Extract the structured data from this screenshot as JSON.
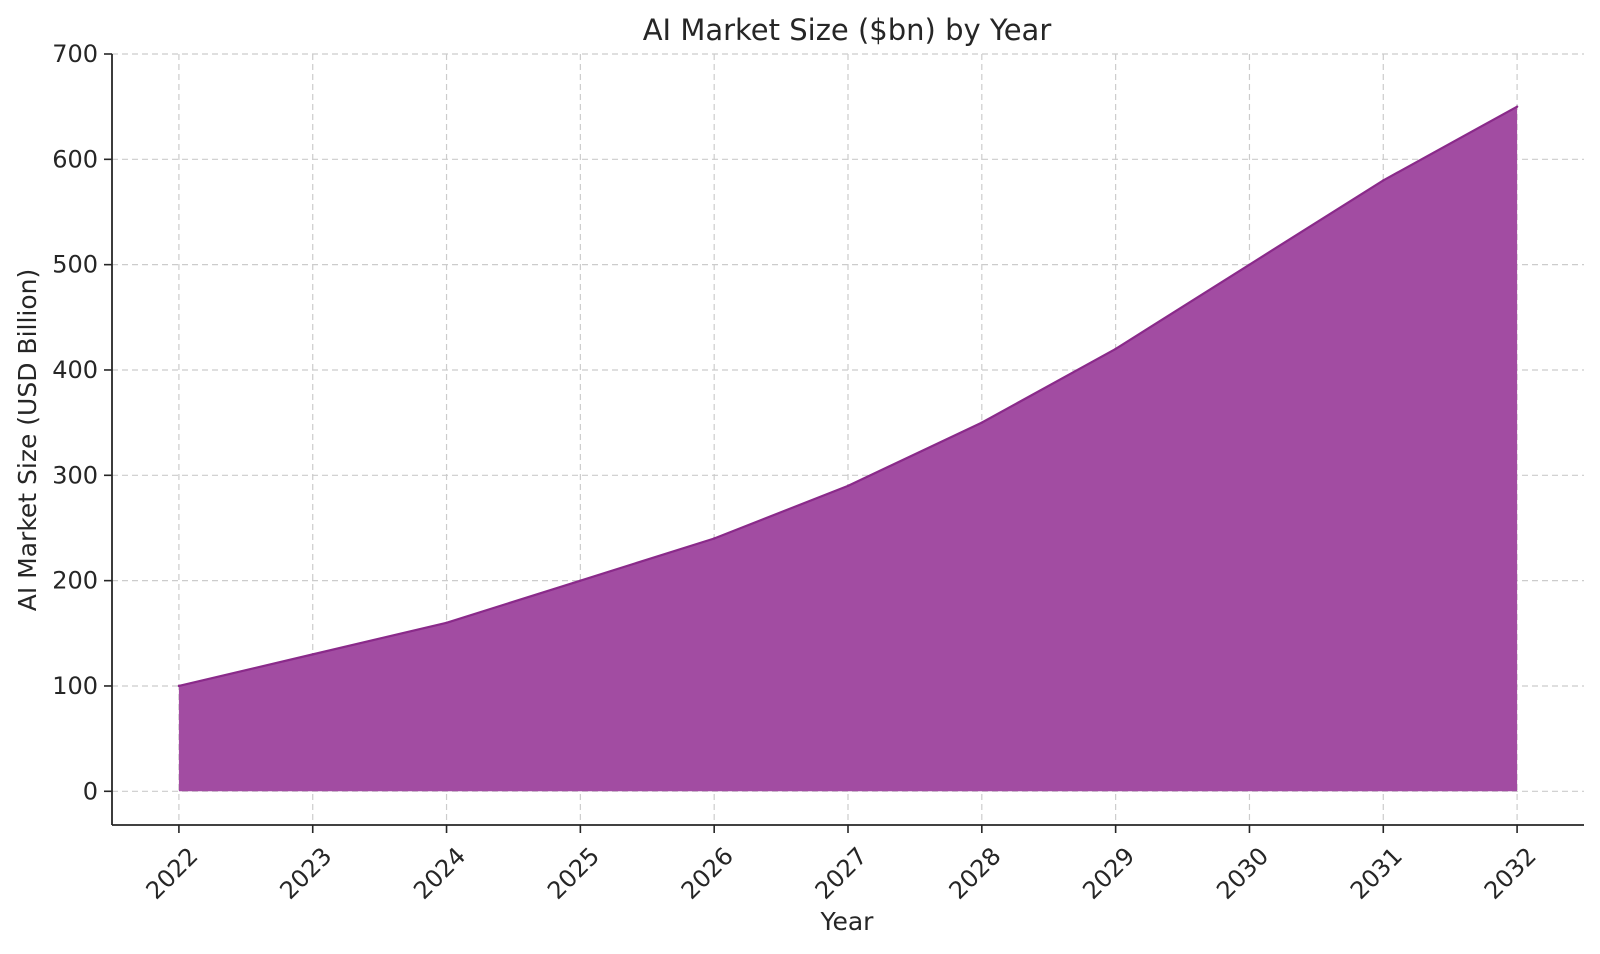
{
  "chart_data": {
    "type": "area",
    "title": "AI Market Size ($bn) by Year",
    "xlabel": "Year",
    "ylabel": "AI Market Size (USD Billion)",
    "x": [
      2022,
      2023,
      2024,
      2025,
      2026,
      2027,
      2028,
      2029,
      2030,
      2031,
      2032
    ],
    "values": [
      100,
      130,
      160,
      200,
      240,
      290,
      350,
      420,
      500,
      580,
      650
    ],
    "xlim": [
      2021.5,
      2032.5
    ],
    "ylim": [
      -32,
      700
    ],
    "yticks": [
      0,
      100,
      200,
      300,
      400,
      500,
      600,
      700
    ],
    "grid": true,
    "colors": {
      "fill": "#a24ca2",
      "line": "#8a2a8a"
    }
  }
}
